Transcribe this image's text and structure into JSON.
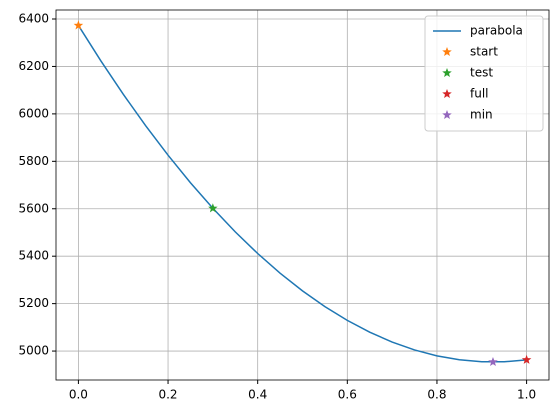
{
  "chart_data": {
    "type": "line",
    "x": [
      0,
      0.05,
      0.1,
      0.15,
      0.2,
      0.25,
      0.3,
      0.35,
      0.4,
      0.45,
      0.5,
      0.55,
      0.6,
      0.65,
      0.7,
      0.75,
      0.8,
      0.85,
      0.9,
      0.95,
      1.0
    ],
    "series": [
      {
        "name": "parabola",
        "color": "#1f77b4",
        "marker": "none",
        "values": [
          6373,
          6223.8,
          6082.9,
          5950.2,
          5825.9,
          5709.8,
          5602.0,
          5502.5,
          5411.3,
          5328.4,
          5253.8,
          5187.4,
          5129.3,
          5079.5,
          5038.0,
          5004.8,
          4979.9,
          4963.2,
          4954.9,
          4954.8,
          4963
        ]
      },
      {
        "name": "start",
        "color": "#ff7f0e",
        "marker": "star",
        "x": [
          0
        ],
        "values": [
          6373
        ]
      },
      {
        "name": "test",
        "color": "#2ca02c",
        "marker": "star",
        "x": [
          0.3
        ],
        "values": [
          5602
        ]
      },
      {
        "name": "full",
        "color": "#d62728",
        "marker": "star",
        "x": [
          1.0
        ],
        "values": [
          4963
        ]
      },
      {
        "name": "min",
        "color": "#9467bd",
        "marker": "star",
        "x": [
          0.925
        ],
        "values": [
          4954
        ]
      }
    ],
    "xlim": [
      -0.05,
      1.05
    ],
    "xticks": [
      {
        "value": 0,
        "label": "0.0"
      },
      {
        "value": 0.2,
        "label": "0.2"
      },
      {
        "value": 0.4,
        "label": "0.4"
      },
      {
        "value": 0.6,
        "label": "0.6"
      },
      {
        "value": 0.8,
        "label": "0.8"
      },
      {
        "value": 1.0,
        "label": "1.0"
      }
    ],
    "ylim": [
      4878,
      6438
    ],
    "yticks": [
      5000,
      5200,
      5400,
      5600,
      5800,
      6000,
      6200,
      6400
    ],
    "grid": true,
    "legend": "upper-right"
  }
}
